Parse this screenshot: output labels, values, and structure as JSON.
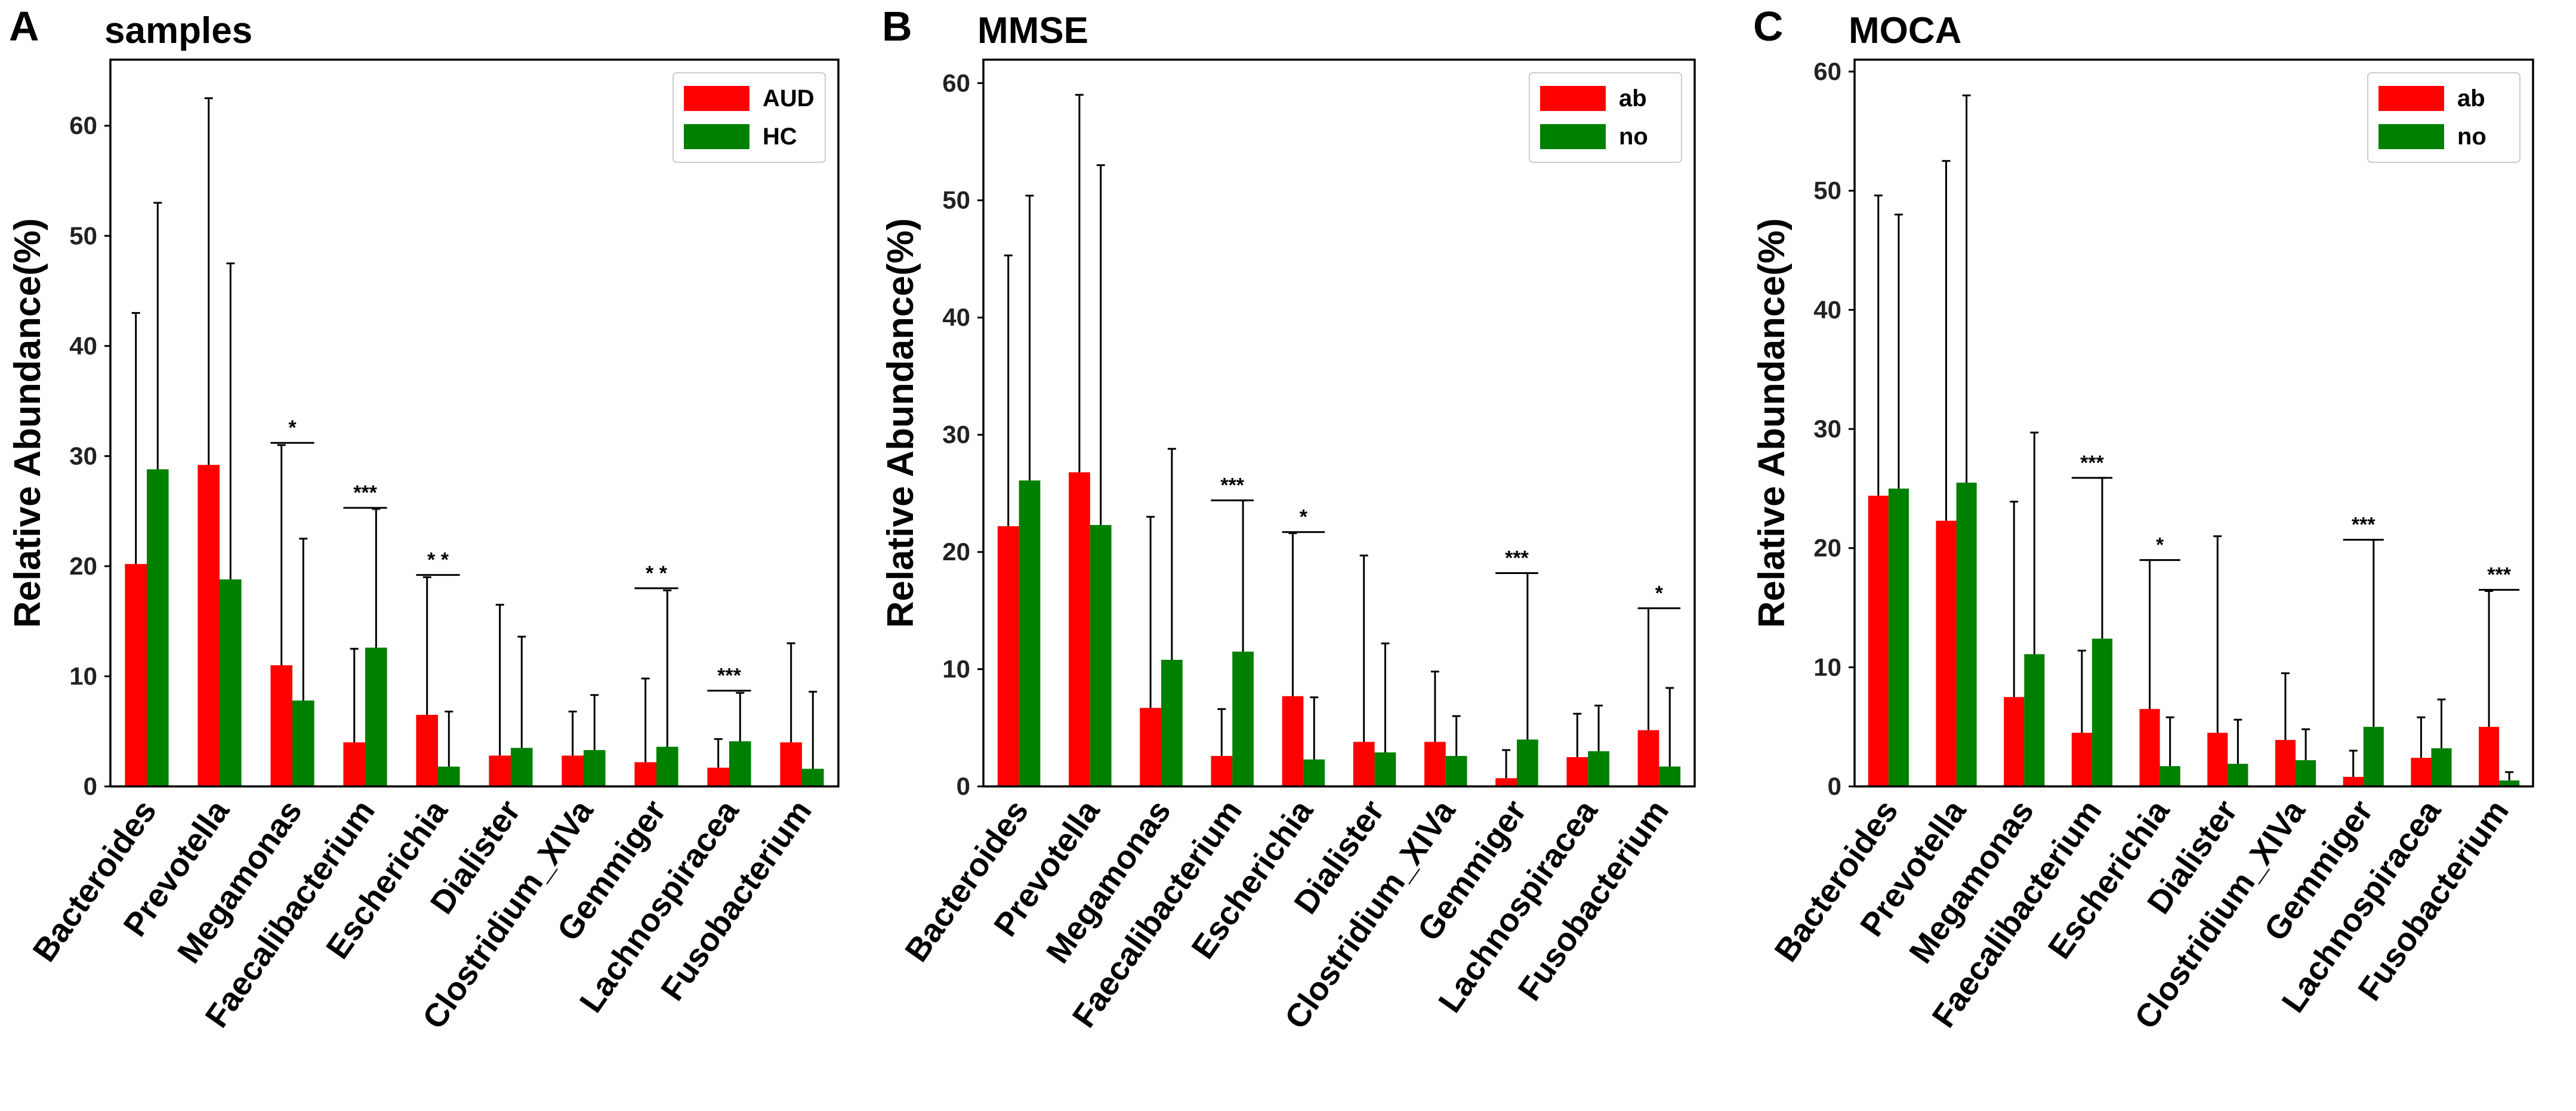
{
  "figure": {
    "colors": {
      "series1": "#ff0000",
      "series2": "#008000",
      "error": "#000000",
      "axis": "#000000"
    }
  },
  "chart_data": [
    {
      "type": "bar",
      "panel_label": "A",
      "title": "samples",
      "xlabel": "",
      "ylabel": "Relative Abundance(%)",
      "ylim": [
        0,
        66
      ],
      "yticks": [
        "0",
        "10",
        "20",
        "30",
        "40",
        "50",
        "60"
      ],
      "legend": "top-right",
      "categories": [
        "Bacteroides",
        "Prevotella",
        "Megamonas",
        "Faecalibacterium",
        "Escherichia",
        "Dialister",
        "Clostridium_XIVa",
        "Gemmiger",
        "Lachnospiracea",
        "Fusobacterium"
      ],
      "series": [
        {
          "name": "AUD",
          "color": "#ff0000",
          "values": [
            20.2,
            29.2,
            11,
            4,
            6.5,
            2.8,
            2.8,
            2.2,
            1.7,
            4
          ],
          "error_upper": [
            43,
            62.5,
            31,
            12.5,
            19,
            16.5,
            6.8,
            9.8,
            4.3,
            13
          ]
        },
        {
          "name": "HC",
          "color": "#008000",
          "values": [
            28.8,
            18.8,
            7.8,
            12.6,
            1.8,
            3.5,
            3.3,
            3.6,
            4.1,
            1.6
          ],
          "error_upper": [
            53,
            47.5,
            22.5,
            25.2,
            6.8,
            13.6,
            8.3,
            17.8,
            8.5,
            8.6
          ]
        }
      ],
      "significance": [
        {
          "category": "Megamonas",
          "label": "*",
          "y": 31.2
        },
        {
          "category": "Faecalibacterium",
          "label": "***",
          "y": 25.3
        },
        {
          "category": "Escherichia",
          "label": "* *",
          "y": 19.2
        },
        {
          "category": "Gemmiger",
          "label": "* *",
          "y": 18
        },
        {
          "category": "Lachnospiracea",
          "label": "***",
          "y": 8.7
        }
      ]
    },
    {
      "type": "bar",
      "panel_label": "B",
      "title": "MMSE",
      "xlabel": "",
      "ylabel": "Relative Abundance(%)",
      "ylim": [
        0,
        62
      ],
      "yticks": [
        "0",
        "10",
        "20",
        "30",
        "40",
        "50",
        "60"
      ],
      "legend": "top-right",
      "categories": [
        "Bacteroides",
        "Prevotella",
        "Megamonas",
        "Faecalibacterium",
        "Escherichia",
        "Dialister",
        "Clostridium_XIVa",
        "Gemmiger",
        "Lachnospiracea",
        "Fusobacterium"
      ],
      "series": [
        {
          "name": "ab",
          "color": "#ff0000",
          "values": [
            22.2,
            26.8,
            6.7,
            2.6,
            7.7,
            3.8,
            3.8,
            0.7,
            2.5,
            4.8
          ],
          "error_upper": [
            45.3,
            59,
            23,
            6.6,
            21.6,
            19.7,
            9.8,
            3.1,
            6.2,
            15.2
          ]
        },
        {
          "name": "no",
          "color": "#008000",
          "values": [
            26.1,
            22.3,
            10.8,
            11.5,
            2.3,
            2.9,
            2.6,
            4,
            3,
            1.7
          ],
          "error_upper": [
            50.4,
            53,
            28.8,
            24.4,
            7.6,
            12.2,
            6,
            18.2,
            6.9,
            8.4
          ]
        }
      ],
      "significance": [
        {
          "category": "Faecalibacterium",
          "label": "***",
          "y": 24.4
        },
        {
          "category": "Escherichia",
          "label": "*",
          "y": 21.7
        },
        {
          "category": "Gemmiger",
          "label": "***",
          "y": 18.2
        },
        {
          "category": "Fusobacterium",
          "label": "*",
          "y": 15.2
        }
      ]
    },
    {
      "type": "bar",
      "panel_label": "C",
      "title": "MOCA",
      "xlabel": "",
      "ylabel": "Relative Abundance(%)",
      "ylim": [
        0,
        61
      ],
      "yticks": [
        "0",
        "10",
        "20",
        "30",
        "40",
        "50",
        "60"
      ],
      "legend": "top-right",
      "categories": [
        "Bacteroides",
        "Prevotella",
        "Megamonas",
        "Faecalibacterium",
        "Escherichia",
        "Dialister",
        "Clostridium_XIVa",
        "Gemmiger",
        "Lachnospiracea",
        "Fusobacterium"
      ],
      "series": [
        {
          "name": "ab",
          "color": "#ff0000",
          "values": [
            24.4,
            22.3,
            7.5,
            4.5,
            6.5,
            4.5,
            3.9,
            0.8,
            2.4,
            5
          ],
          "error_upper": [
            49.6,
            52.5,
            23.9,
            11.4,
            19,
            21,
            9.5,
            3,
            5.8,
            16.4
          ]
        },
        {
          "name": "no",
          "color": "#008000",
          "values": [
            25,
            25.5,
            11.1,
            12.4,
            1.7,
            1.9,
            2.2,
            5,
            3.2,
            0.5
          ],
          "error_upper": [
            48,
            58,
            29.7,
            25.9,
            5.8,
            5.6,
            4.8,
            20.7,
            7.3,
            1.2
          ]
        }
      ],
      "significance": [
        {
          "category": "Faecalibacterium",
          "label": "***",
          "y": 25.9
        },
        {
          "category": "Escherichia",
          "label": "*",
          "y": 19
        },
        {
          "category": "Gemmiger",
          "label": "***",
          "y": 20.7
        },
        {
          "category": "Fusobacterium",
          "label": "***",
          "y": 16.5
        }
      ]
    }
  ]
}
